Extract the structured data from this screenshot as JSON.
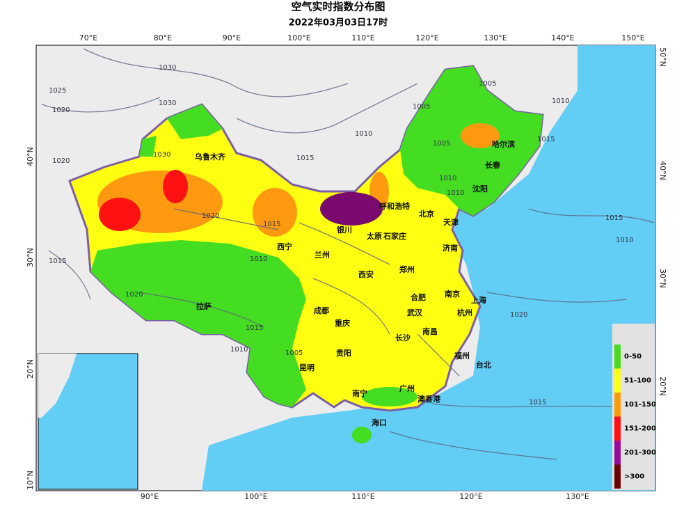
{
  "title": "空气实时指数分布图",
  "subtitle": "2022年03月03日17时",
  "axes": {
    "top": [
      "70°E",
      "80°E",
      "90°E",
      "100°E",
      "110°E",
      "120°E",
      "130°E",
      "140°E",
      "150°E"
    ],
    "bottom": [
      "90°E",
      "100°E",
      "110°E",
      "120°E",
      "130°E"
    ],
    "left": [
      "40°N",
      "30°N",
      "20°N",
      "10°N"
    ],
    "right": [
      "50°N",
      "40°N",
      "30°N",
      "20°N"
    ]
  },
  "cities": [
    "乌鲁木齐",
    "哈尔滨",
    "长春",
    "沈阳",
    "呼和浩特",
    "北京",
    "天津",
    "银川",
    "太原",
    "石家庄",
    "西宁",
    "兰州",
    "济南",
    "郑州",
    "西安",
    "拉萨",
    "合肥",
    "南京",
    "上海",
    "成都",
    "武汉",
    "杭州",
    "重庆",
    "南昌",
    "长沙",
    "福州",
    "台北",
    "贵阳",
    "昆明",
    "南宁",
    "广州",
    "澳香港",
    "海口"
  ],
  "isobars": [
    "1030",
    "1025",
    "1020",
    "1030",
    "1030",
    "1020",
    "1015",
    "1010",
    "1005",
    "1005",
    "1005",
    "1010",
    "1015",
    "1020",
    "1015",
    "1010",
    "1015",
    "1020",
    "1015",
    "1010",
    "1005",
    "1010",
    "1015",
    "1020",
    "1015",
    "1010",
    "1010"
  ],
  "legend": [
    {
      "label": "0-50",
      "color": "#44dd22"
    },
    {
      "label": "51-100",
      "color": "#ffff11"
    },
    {
      "label": "101-150",
      "color": "#ff9a10"
    },
    {
      "label": "151-200",
      "color": "#ff1111"
    },
    {
      "label": "201-300",
      "color": "#9a0a9a"
    },
    {
      "label": ">300",
      "color": "#6e0000"
    }
  ]
}
